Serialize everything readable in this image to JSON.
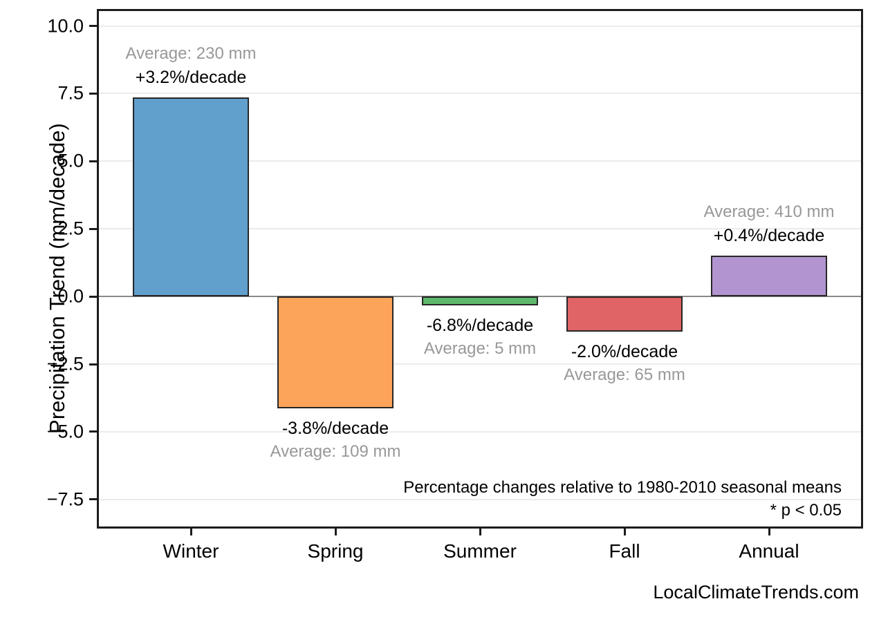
{
  "chart_data": {
    "type": "bar",
    "categories": [
      "Winter",
      "Spring",
      "Summer",
      "Fall",
      "Annual"
    ],
    "values": [
      7.36,
      -4.14,
      -0.34,
      -1.3,
      1.5
    ],
    "series_unit": "mm/decade",
    "bar_colors": [
      "#619fcc",
      "#fca45a",
      "#5db96b",
      "#e06466",
      "#b294d0"
    ],
    "bar_edge_color": "#262626",
    "bar_labels": [
      {
        "pct": "+3.2%/decade",
        "avg": "Average: 230 mm"
      },
      {
        "pct": "-3.8%/decade",
        "avg": "Average: 109 mm"
      },
      {
        "pct": "-6.8%/decade",
        "avg": "Average: 5 mm"
      },
      {
        "pct": "-2.0%/decade",
        "avg": "Average: 65 mm"
      },
      {
        "pct": "+0.4%/decade",
        "avg": "Average: 410 mm"
      }
    ],
    "title": "",
    "xlabel": "",
    "ylabel": "Precipitation Trend (mm/decade)",
    "ylim": [
      -8.5,
      10.55
    ],
    "yticks": [
      10.0,
      7.5,
      5.0,
      2.5,
      0.0,
      -2.5,
      -5.0,
      -7.5
    ],
    "ytick_labels": [
      "10.0",
      "7.5",
      "5.0",
      "2.5",
      "0.0",
      "−2.5",
      "−5.0",
      "−7.5"
    ],
    "grid": true,
    "gridline_color": "#ebebeb",
    "zero_line_color": "#8a8a8a",
    "annotations": [
      "Percentage changes relative to 1980-2010 seasonal means",
      "* p < 0.05"
    ],
    "watermark": "LocalClimateTrends.com",
    "avg_label_color": "#989898"
  }
}
